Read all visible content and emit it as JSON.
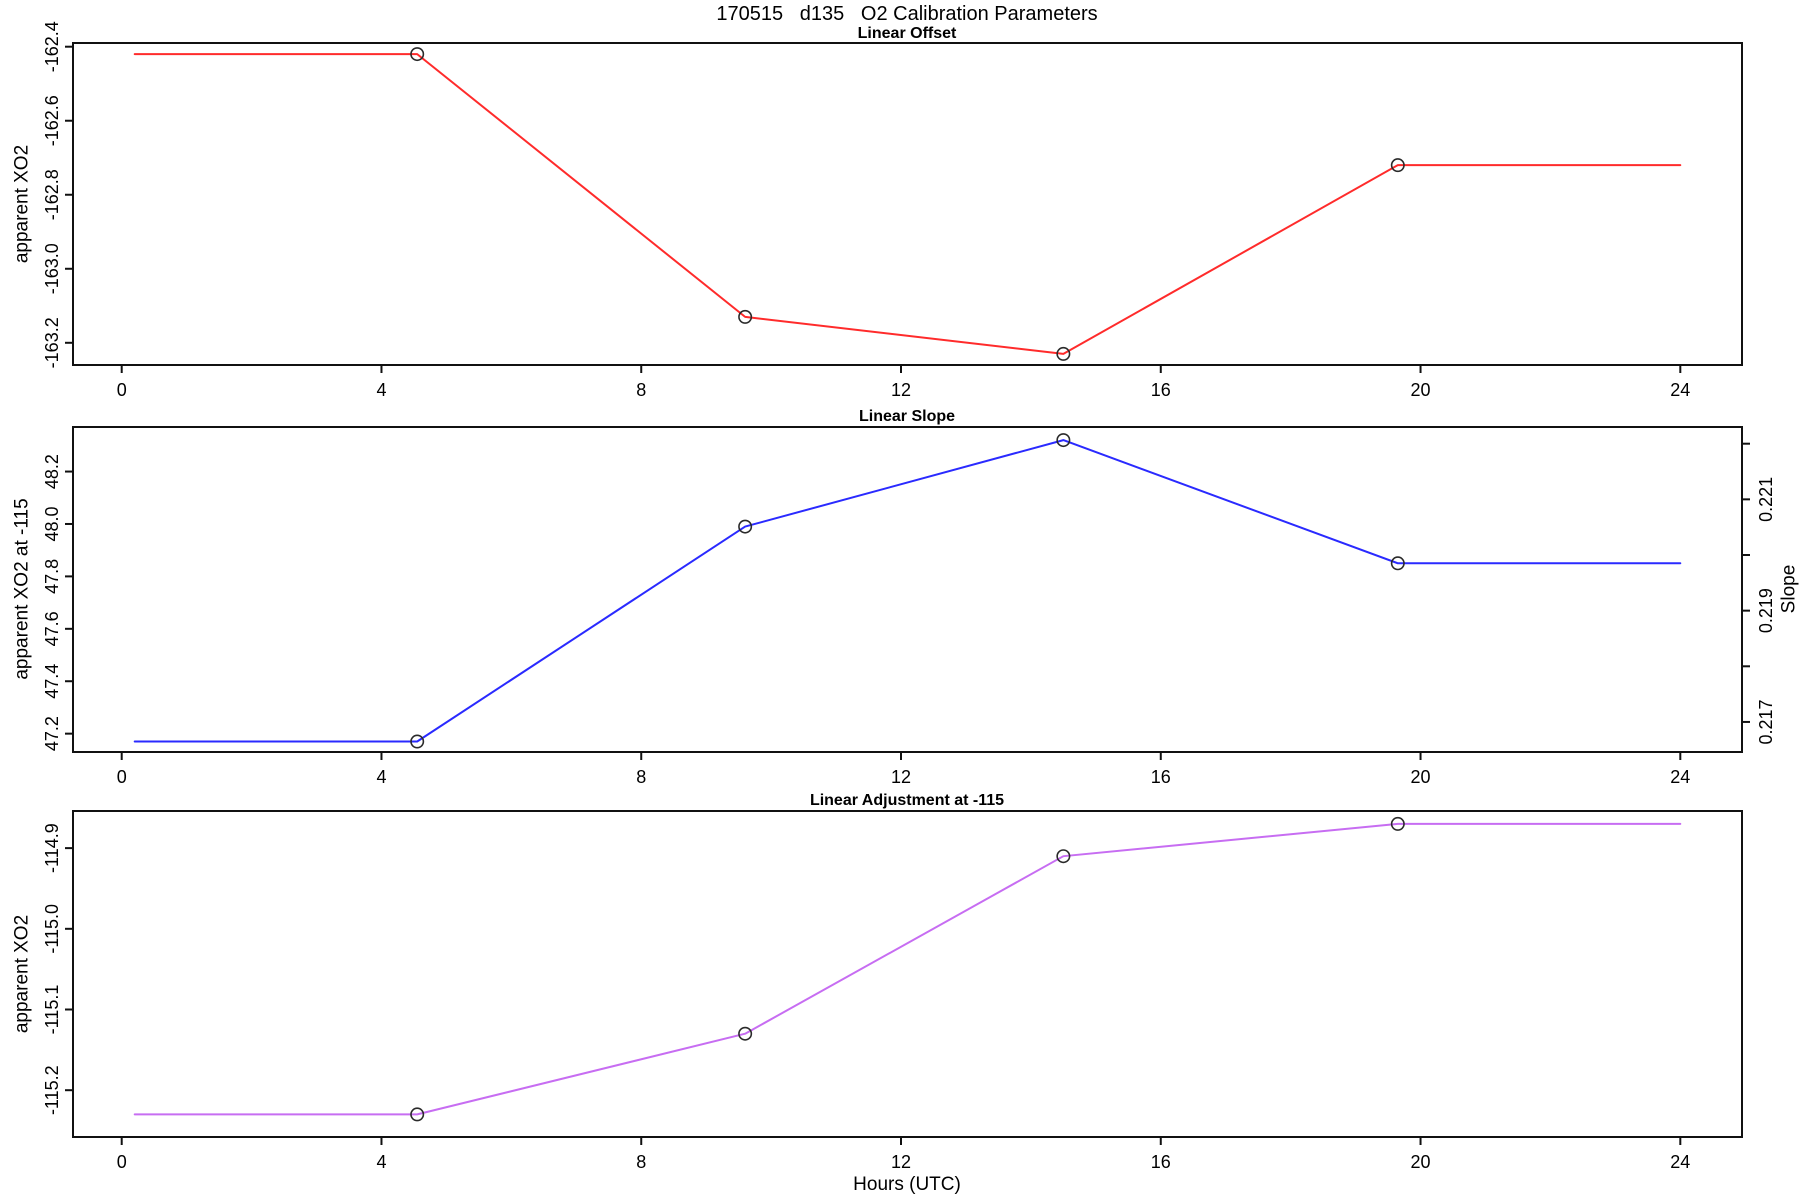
{
  "main_title": "170515   d135   O2 Calibration Parameters",
  "x_axis": {
    "title": "Hours (UTC)",
    "lim": [
      -0.75,
      24.95
    ],
    "ticks": [
      0,
      4,
      8,
      12,
      16,
      20,
      24
    ],
    "tick_labels": [
      "0",
      "4",
      "8",
      "12",
      "16",
      "20",
      "24"
    ]
  },
  "marker": "open-circle",
  "chart_data": [
    {
      "type": "line",
      "title": "Linear Offset",
      "ylabel": "apparent XO2",
      "color": "#ff2b2b",
      "x": [
        0.2,
        4.55,
        9.6,
        14.5,
        19.65,
        24
      ],
      "y": [
        -162.42,
        -162.42,
        -163.13,
        -163.23,
        -162.72,
        -162.72
      ],
      "marker_indices": [
        1,
        2,
        3,
        4
      ],
      "ylim": [
        -163.26,
        -162.39
      ],
      "yticks": [
        -162.4,
        -162.6,
        -162.8,
        -163.0,
        -163.2
      ],
      "ytick_labels": [
        "-162.4",
        "-162.6",
        "-162.8",
        "-163.0",
        "-163.2"
      ],
      "grid": false,
      "legend": "none"
    },
    {
      "type": "line",
      "title": "Linear Slope",
      "ylabel": "apparent XO2 at -115",
      "y2label": "Slope",
      "color": "#2a2aff",
      "x": [
        0.2,
        4.55,
        9.6,
        14.5,
        19.65,
        24
      ],
      "y": [
        47.17,
        47.17,
        47.99,
        48.32,
        47.85,
        47.85
      ],
      "marker_indices": [
        1,
        2,
        3,
        4
      ],
      "ylim": [
        47.13,
        48.37
      ],
      "yticks": [
        47.2,
        47.4,
        47.6,
        47.8,
        48.0,
        48.2
      ],
      "ytick_labels": [
        "47.2",
        "47.4",
        "47.6",
        "47.8",
        "48.0",
        "48.2"
      ],
      "y2lim": [
        0.21646,
        0.2223
      ],
      "y2ticks": [
        0.217,
        0.218,
        0.219,
        0.22,
        0.221,
        0.222
      ],
      "y2tick_labels": [
        "0.217",
        "",
        "0.219",
        "",
        "0.221",
        ""
      ],
      "grid": false,
      "legend": "none"
    },
    {
      "type": "line",
      "title": "Linear Adjustment at -115",
      "ylabel": "apparent XO2",
      "color": "#c76df2",
      "x": [
        0.2,
        4.55,
        9.6,
        14.5,
        19.65,
        24
      ],
      "y": [
        -115.23,
        -115.23,
        -115.13,
        -114.91,
        -114.87,
        -114.87
      ],
      "marker_indices": [
        1,
        2,
        3,
        4
      ],
      "ylim": [
        -115.258,
        -114.854
      ],
      "yticks": [
        -114.9,
        -115.0,
        -115.1,
        -115.2
      ],
      "ytick_labels": [
        "-114.9",
        "-115.0",
        "-115.1",
        "-115.2"
      ],
      "grid": false,
      "legend": "none"
    }
  ]
}
